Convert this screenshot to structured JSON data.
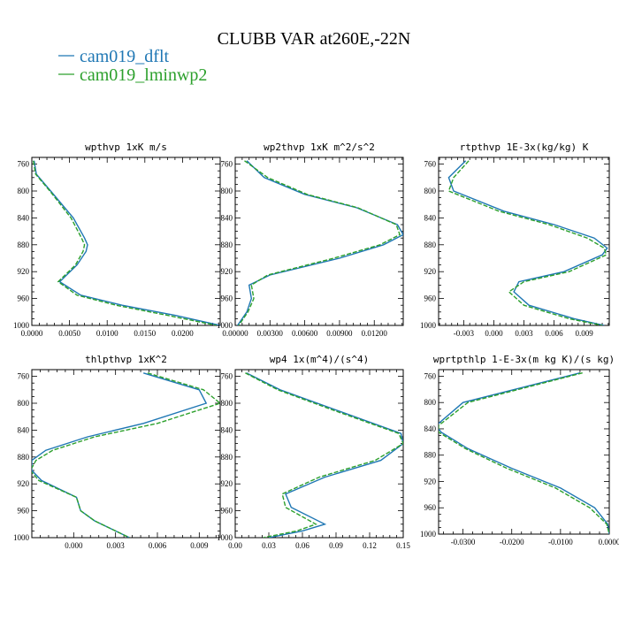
{
  "title": "CLUBB VAR at260E,-22N",
  "legend": [
    {
      "name": "cam019_dflt",
      "color": "#1f77b4",
      "dash": false
    },
    {
      "name": "cam019_lminwp2",
      "color": "#2ca02c",
      "dash": true
    }
  ],
  "chart_data": [
    {
      "type": "line",
      "title": "wpthvp  1xK m/s",
      "ylim": [
        1000,
        750
      ],
      "y_ticks": [
        760,
        800,
        840,
        880,
        920,
        960,
        1000
      ],
      "xlim": [
        0,
        0.025
      ],
      "x_ticks": [
        0.0,
        0.005,
        0.01,
        0.015,
        0.02
      ],
      "x_tick_labels": [
        "0.0000",
        "0.0050",
        "0.0100",
        "0.0150",
        "0.0200"
      ],
      "y": [
        755,
        775,
        800,
        840,
        870,
        880,
        890,
        910,
        935,
        955,
        970,
        985,
        1000
      ],
      "series": [
        {
          "name": "cam019_dflt",
          "x": [
            0.0003,
            0.0006,
            0.0025,
            0.0055,
            0.007,
            0.0074,
            0.0072,
            0.006,
            0.0037,
            0.0065,
            0.012,
            0.019,
            0.025
          ]
        },
        {
          "name": "cam019_lminwp2",
          "x": [
            0.0002,
            0.0005,
            0.0024,
            0.0052,
            0.0066,
            0.007,
            0.0068,
            0.0058,
            0.0035,
            0.006,
            0.0112,
            0.018,
            0.0245
          ]
        }
      ]
    },
    {
      "type": "line",
      "title": "wp2thvp  1xK m^2/s^2",
      "ylim": [
        1000,
        750
      ],
      "y_ticks": [
        760,
        800,
        840,
        880,
        920,
        960,
        1000
      ],
      "xlim": [
        0,
        0.0145
      ],
      "x_ticks": [
        0.0,
        0.003,
        0.006,
        0.009,
        0.012
      ],
      "x_tick_labels": [
        "0.00000",
        "0.00300",
        "0.00600",
        "0.00900",
        "0.01200"
      ],
      "y": [
        755,
        780,
        805,
        825,
        850,
        865,
        880,
        900,
        925,
        940,
        960,
        980,
        1000
      ],
      "series": [
        {
          "name": "cam019_dflt",
          "x": [
            0.001,
            0.0025,
            0.006,
            0.0105,
            0.014,
            0.0145,
            0.0128,
            0.009,
            0.003,
            0.0012,
            0.0014,
            0.001,
            0.0002
          ]
        },
        {
          "name": "cam019_lminwp2",
          "x": [
            0.0008,
            0.0028,
            0.0062,
            0.0106,
            0.0139,
            0.0142,
            0.0125,
            0.0085,
            0.0028,
            0.0014,
            0.0016,
            0.0011,
            0.0003
          ]
        }
      ]
    },
    {
      "type": "line",
      "title": "rtpthvp  1E-3x(kg/kg) K",
      "ylim": [
        1000,
        750
      ],
      "y_ticks": [
        760,
        800,
        840,
        880,
        920,
        960,
        1000
      ],
      "xlim": [
        -0.0055,
        0.0115
      ],
      "x_ticks": [
        -0.003,
        0.0,
        0.003,
        0.006,
        0.009
      ],
      "x_tick_labels": [
        "-0.003",
        "0.000",
        "0.003",
        "0.006",
        "0.009"
      ],
      "y": [
        755,
        780,
        800,
        830,
        850,
        870,
        885,
        895,
        920,
        935,
        950,
        970,
        990,
        1000
      ],
      "series": [
        {
          "name": "cam019_dflt",
          "x": [
            -0.0028,
            -0.0045,
            -0.004,
            0.001,
            0.006,
            0.01,
            0.0113,
            0.0108,
            0.007,
            0.0025,
            0.002,
            0.0035,
            0.008,
            0.011
          ]
        },
        {
          "name": "cam019_lminwp2",
          "x": [
            -0.0025,
            -0.004,
            -0.0045,
            0.0005,
            0.0055,
            0.0093,
            0.011,
            0.0112,
            0.0075,
            0.003,
            0.0015,
            0.003,
            0.0075,
            0.0108
          ]
        }
      ]
    },
    {
      "type": "line",
      "title": "thlpthvp  1xK^2",
      "ylim": [
        1000,
        750
      ],
      "y_ticks": [
        760,
        800,
        840,
        880,
        920,
        960,
        1000
      ],
      "xlim": [
        -0.003,
        0.0105
      ],
      "x_ticks": [
        0.0,
        0.003,
        0.006,
        0.009
      ],
      "x_tick_labels": [
        "0.000",
        "0.003",
        "0.006",
        "0.009"
      ],
      "y": [
        755,
        780,
        800,
        830,
        850,
        870,
        885,
        900,
        915,
        940,
        960,
        975,
        1000
      ],
      "series": [
        {
          "name": "cam019_dflt",
          "x": [
            0.005,
            0.009,
            0.0095,
            0.005,
            0.001,
            -0.002,
            -0.003,
            -0.003,
            -0.0023,
            0.0002,
            0.0005,
            0.0015,
            0.004
          ]
        },
        {
          "name": "cam019_lminwp2",
          "x": [
            0.0053,
            0.0093,
            0.0105,
            0.006,
            0.0015,
            -0.0015,
            -0.0027,
            -0.0031,
            -0.0025,
            0.0002,
            0.0005,
            0.0015,
            0.004
          ]
        }
      ]
    },
    {
      "type": "line",
      "title": "wp4  1x(m^4)/(s^4)",
      "ylim": [
        1000,
        750
      ],
      "y_ticks": [
        760,
        800,
        840,
        880,
        920,
        960,
        1000
      ],
      "xlim": [
        0,
        0.15
      ],
      "x_ticks": [
        0.0,
        0.03,
        0.06,
        0.09,
        0.12,
        0.15
      ],
      "x_tick_labels": [
        "0.00",
        "0.03",
        "0.06",
        "0.09",
        "0.12",
        "0.15"
      ],
      "y": [
        755,
        780,
        810,
        845,
        860,
        885,
        910,
        935,
        955,
        980,
        990,
        1000
      ],
      "series": [
        {
          "name": "cam019_dflt",
          "x": [
            0.01,
            0.04,
            0.09,
            0.148,
            0.15,
            0.13,
            0.08,
            0.045,
            0.05,
            0.08,
            0.06,
            0.03
          ]
        },
        {
          "name": "cam019_lminwp2",
          "x": [
            0.009,
            0.038,
            0.087,
            0.146,
            0.15,
            0.125,
            0.075,
            0.042,
            0.045,
            0.072,
            0.055,
            0.025
          ]
        }
      ]
    },
    {
      "type": "line",
      "title": "wprtpthlp  1-E-3x(m kg K)/(s kg)",
      "ylim": [
        1000,
        750
      ],
      "y_ticks": [
        760,
        800,
        840,
        880,
        920,
        960,
        1000
      ],
      "xlim": [
        -0.035,
        0.0
      ],
      "x_ticks": [
        -0.03,
        -0.02,
        -0.01,
        0.0
      ],
      "x_tick_labels": [
        "-0.0300",
        "-0.0200",
        "-0.0100",
        "0.0000"
      ],
      "y": [
        755,
        800,
        835,
        845,
        870,
        900,
        930,
        960,
        985,
        1000
      ],
      "series": [
        {
          "name": "cam019_dflt",
          "x": [
            -0.006,
            -0.03,
            -0.0355,
            -0.0345,
            -0.029,
            -0.02,
            -0.01,
            -0.003,
            -0.0003,
            0.0
          ]
        },
        {
          "name": "cam019_lminwp2",
          "x": [
            -0.0055,
            -0.029,
            -0.035,
            -0.035,
            -0.0295,
            -0.021,
            -0.011,
            -0.004,
            -0.0005,
            0.0
          ]
        }
      ]
    }
  ]
}
